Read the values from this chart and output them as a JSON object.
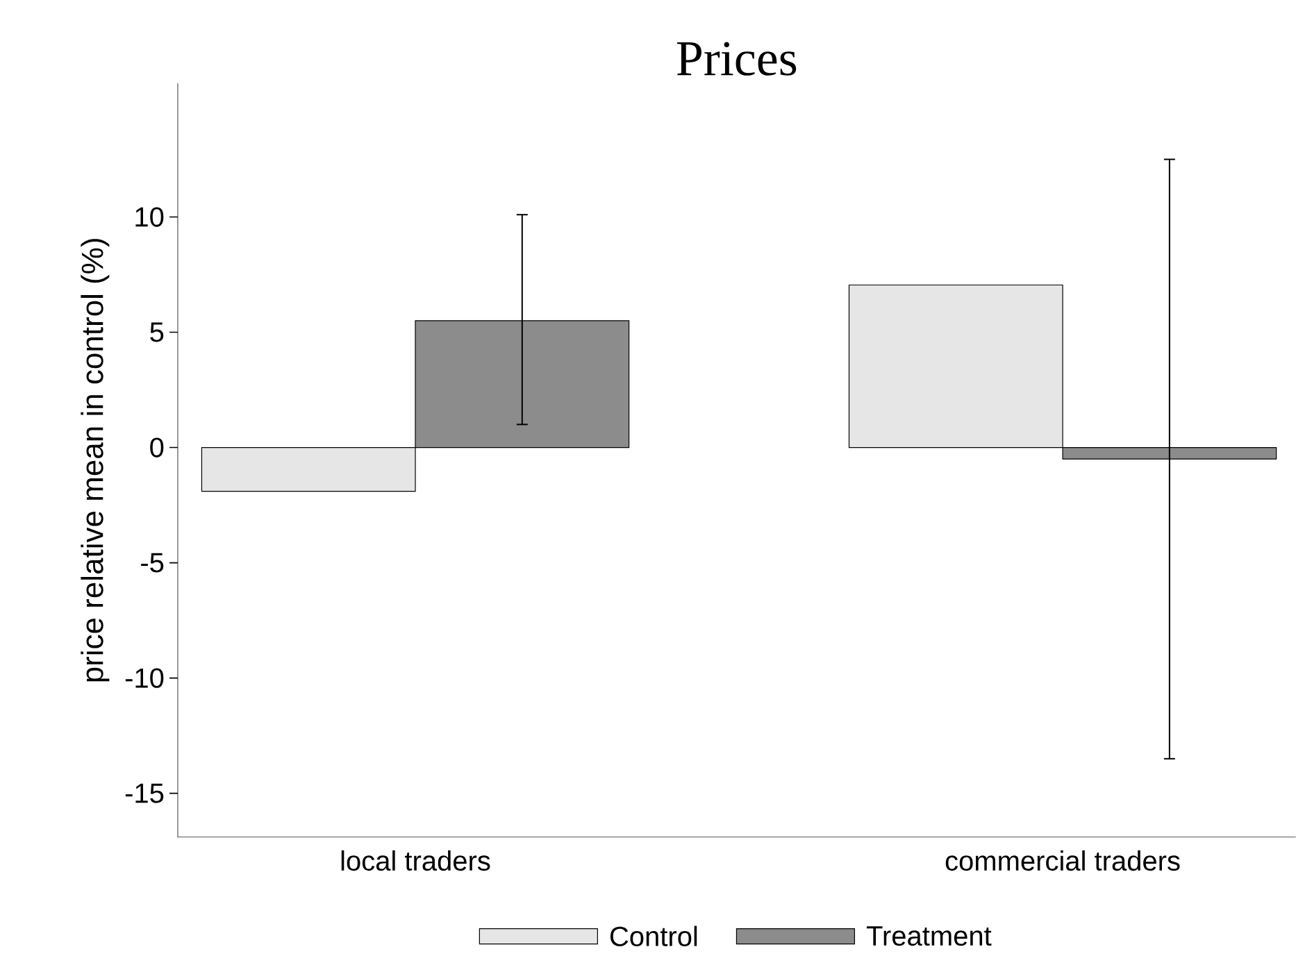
{
  "chart_data": {
    "type": "bar",
    "title": "Prices",
    "ylabel": "price relative mean in control (%)",
    "categories": [
      "local traders",
      "commercial traders"
    ],
    "series": [
      {
        "name": "Control",
        "color": "#e6e6e6",
        "values": [
          -1.9,
          7.05
        ],
        "errors": [
          null,
          null
        ]
      },
      {
        "name": "Treatment",
        "color": "#8c8c8c",
        "values": [
          5.5,
          -0.5
        ],
        "errors": [
          [
            1.0,
            10.1
          ],
          [
            -13.5,
            12.5
          ]
        ]
      }
    ],
    "ylim": [
      -16.9,
      15.8
    ],
    "yticks": [
      -15,
      -10,
      -5,
      0,
      5,
      10
    ],
    "grid": false,
    "legend": "bottom"
  }
}
